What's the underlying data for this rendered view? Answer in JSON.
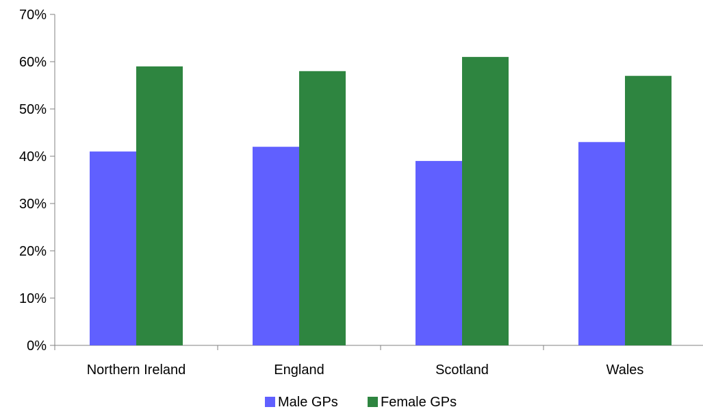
{
  "chart_data": {
    "type": "bar",
    "title": "",
    "xlabel": "",
    "ylabel": "",
    "categories": [
      "Northern Ireland",
      "England",
      "Scotland",
      "Wales"
    ],
    "series": [
      {
        "name": "Male GPs",
        "values": [
          41,
          42,
          39,
          43
        ],
        "color": "#6060FF"
      },
      {
        "name": "Female GPs",
        "values": [
          59,
          58,
          61,
          57
        ],
        "color": "#2E8540"
      }
    ],
    "ylim": [
      0,
      70
    ],
    "yticks": [
      0,
      10,
      20,
      30,
      40,
      50,
      60,
      70
    ],
    "ytick_labels": [
      "0%",
      "10%",
      "20%",
      "30%",
      "40%",
      "50%",
      "60%",
      "70%"
    ],
    "grid": false,
    "legend_position": "bottom"
  }
}
